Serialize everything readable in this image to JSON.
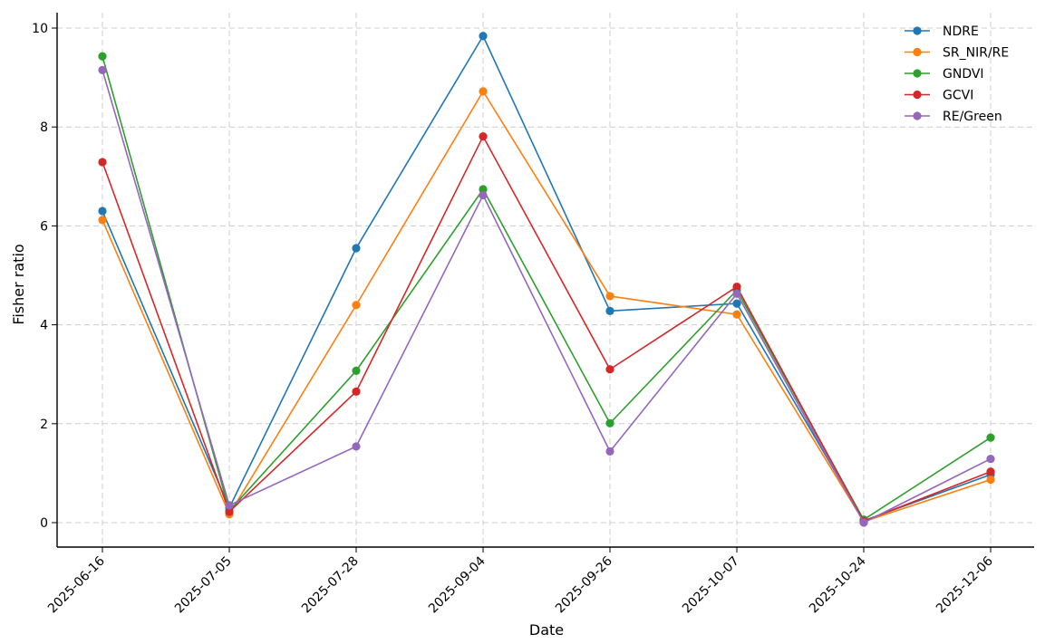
{
  "chart_data": {
    "type": "line",
    "title": "",
    "xlabel": "Date",
    "ylabel": "Fisher ratio",
    "categories": [
      "2025-06-16",
      "2025-07-05",
      "2025-07-28",
      "2025-09-04",
      "2025-09-26",
      "2025-10-07",
      "2025-10-24",
      "2025-12-06"
    ],
    "ylim": [
      -0.5,
      10.35
    ],
    "yticks": [
      0,
      2,
      4,
      6,
      8,
      10
    ],
    "grid": true,
    "legend_position": "top-right",
    "series": [
      {
        "name": "NDRE",
        "color": "#1f77b4",
        "values": [
          6.3,
          0.3,
          5.55,
          9.84,
          4.28,
          4.43,
          0.04,
          0.97
        ]
      },
      {
        "name": "SR_NIR/RE",
        "color": "#ff7f0e",
        "values": [
          6.12,
          0.17,
          4.4,
          8.72,
          4.58,
          4.21,
          0.02,
          0.87
        ]
      },
      {
        "name": "GNDVI",
        "color": "#2ca02c",
        "values": [
          9.43,
          0.24,
          3.07,
          6.74,
          2.01,
          4.7,
          0.06,
          1.72
        ]
      },
      {
        "name": "GCVI",
        "color": "#d62728",
        "values": [
          7.29,
          0.22,
          2.65,
          7.81,
          3.1,
          4.77,
          0.03,
          1.03
        ]
      },
      {
        "name": "RE/Green",
        "color": "#9467bd",
        "values": [
          9.15,
          0.35,
          1.54,
          6.62,
          1.44,
          4.63,
          0.0,
          1.29
        ]
      }
    ]
  }
}
